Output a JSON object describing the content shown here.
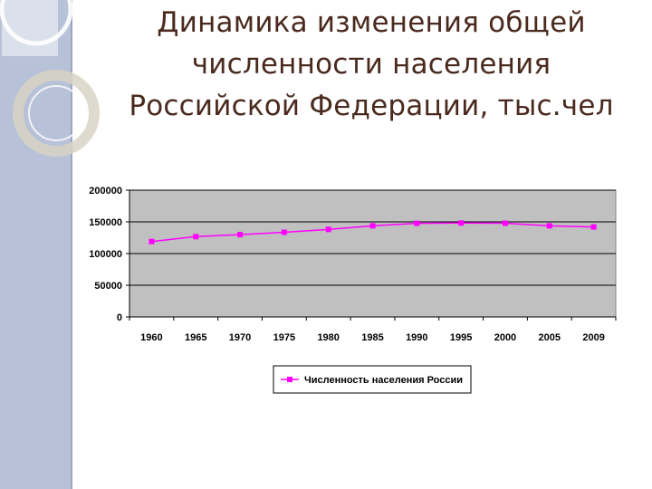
{
  "slide": {
    "title_lines": [
      "Динамика изменения общей",
      "численности населения",
      "Российской Федерации, тыс.чел"
    ],
    "colors": {
      "side_band": "#b7c1d8",
      "title": "#4a2a1e"
    }
  },
  "chart_data": {
    "type": "line",
    "title": "",
    "xlabel": "",
    "ylabel": "",
    "categories": [
      "1960",
      "1965",
      "1970",
      "1975",
      "1980",
      "1985",
      "1990",
      "1995",
      "2000",
      "2005",
      "2009"
    ],
    "series": [
      {
        "name": "Численность населения России",
        "color": "#ff00ff",
        "values": [
          119000,
          126700,
          129900,
          133600,
          138100,
          143800,
          147700,
          148200,
          147900,
          143800,
          141900
        ]
      }
    ],
    "ylim": [
      0,
      200000
    ],
    "yticks": [
      "200000",
      "150000",
      "100000",
      "50000",
      "0"
    ],
    "grid": true,
    "plot_background": "#c0c0c0",
    "legend_position": "bottom"
  }
}
